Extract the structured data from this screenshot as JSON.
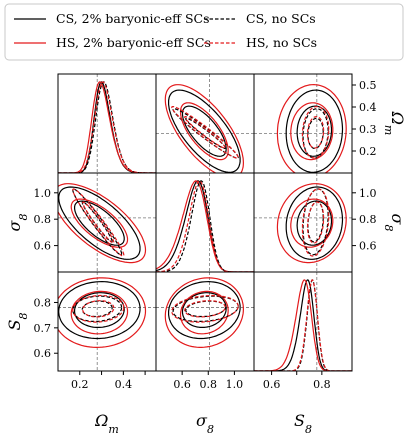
{
  "chart_data": {
    "type": "corner",
    "parameters": [
      {
        "key": "om",
        "label": "Ω",
        "sub": "m",
        "range": [
          0.1,
          0.55
        ],
        "ticks": [
          0.2,
          0.3,
          0.4,
          0.5
        ],
        "tick_labels": [
          "0.2",
          "0.3",
          "0.4",
          "0.5"
        ],
        "truth": 0.28
      },
      {
        "key": "s8",
        "label": "σ",
        "sub": "8",
        "range": [
          0.4,
          1.15
        ],
        "ticks": [
          0.6,
          0.8,
          1.0
        ],
        "tick_labels": [
          "0.6",
          "0.8",
          "1.0"
        ],
        "truth": 0.81
      },
      {
        "key": "S8",
        "label": "S",
        "sub": "8",
        "range": [
          0.53,
          0.92
        ],
        "ticks": [
          0.6,
          0.7,
          0.8
        ],
        "tick_labels": [
          "0.6",
          "0.7",
          "0.8"
        ],
        "truth": 0.78
      }
    ],
    "bottom_tick_labels": {
      "om": [
        "0.2",
        "0.4"
      ],
      "s8": [
        "0.6",
        "0.8",
        "1.0"
      ],
      "S8": [
        "0.6",
        "0.8"
      ]
    },
    "series": [
      {
        "name": "CS, 2% baryonic-eff SCs",
        "color": "#000000",
        "dashed": false,
        "marginals": {
          "om": [
            0.27,
            0.055,
            1.9
          ],
          "s8": [
            0.79,
            0.13,
            -2.0
          ],
          "S8": [
            0.765,
            0.04,
            -1.8
          ]
        },
        "contours": {
          "om_s8": {
            "mean": [
              0.29,
              0.77
            ],
            "sd": [
              0.075,
              0.11
            ],
            "rho": -0.7
          },
          "om_S8": {
            "mean": [
              0.29,
              0.77
            ],
            "sd": [
              0.075,
              0.045
            ],
            "rho": 0.05
          },
          "s8_S8": {
            "mean": [
              0.77,
              0.77
            ],
            "sd": [
              0.11,
              0.045
            ],
            "rho": 0.1
          }
        }
      },
      {
        "name": "HS, 2% baryonic-eff SCs",
        "color": "#e31a1c",
        "dashed": false,
        "marginals": {
          "om": [
            0.26,
            0.06,
            1.9
          ],
          "s8": [
            0.78,
            0.14,
            -2.0
          ],
          "S8": [
            0.755,
            0.045,
            -1.8
          ]
        },
        "contours": {
          "om_s8": {
            "mean": [
              0.29,
              0.77
            ],
            "sd": [
              0.085,
              0.12
            ],
            "rho": -0.68
          },
          "om_S8": {
            "mean": [
              0.29,
              0.76
            ],
            "sd": [
              0.085,
              0.055
            ],
            "rho": 0.05
          },
          "s8_S8": {
            "mean": [
              0.77,
              0.76
            ],
            "sd": [
              0.12,
              0.055
            ],
            "rho": 0.1
          }
        }
      },
      {
        "name": "CS, no SCs",
        "color": "#000000",
        "dashed": true,
        "marginals": {
          "om": [
            0.28,
            0.055,
            1.6
          ],
          "s8": [
            0.8,
            0.1,
            -1.6
          ],
          "S8": [
            0.775,
            0.025,
            -1.0
          ]
        },
        "contours": {
          "om_s8": {
            "mean": [
              0.28,
              0.78
            ],
            "sd": [
              0.045,
              0.1
            ],
            "rho": -0.97
          },
          "om_S8": {
            "mean": [
              0.28,
              0.775
            ],
            "sd": [
              0.045,
              0.02
            ],
            "rho": 0.1
          },
          "s8_S8": {
            "mean": [
              0.78,
              0.775
            ],
            "sd": [
              0.1,
              0.02
            ],
            "rho": 0.2
          }
        }
      },
      {
        "name": "HS, no SCs",
        "color": "#e31a1c",
        "dashed": true,
        "marginals": {
          "om": [
            0.275,
            0.057,
            1.6
          ],
          "s8": [
            0.79,
            0.105,
            -1.6
          ],
          "S8": [
            0.775,
            0.026,
            -1.0
          ]
        },
        "contours": {
          "om_s8": {
            "mean": [
              0.285,
              0.775
            ],
            "sd": [
              0.047,
              0.102
            ],
            "rho": -0.97
          },
          "om_S8": {
            "mean": [
              0.285,
              0.775
            ],
            "sd": [
              0.047,
              0.021
            ],
            "rho": 0.1
          },
          "s8_S8": {
            "mean": [
              0.775,
              0.775
            ],
            "sd": [
              0.102,
              0.021
            ],
            "rho": 0.2
          }
        }
      }
    ],
    "contour_levels_sigma": [
      1.52,
      2.49
    ],
    "truth_lines": true,
    "legend_placement": "top"
  }
}
